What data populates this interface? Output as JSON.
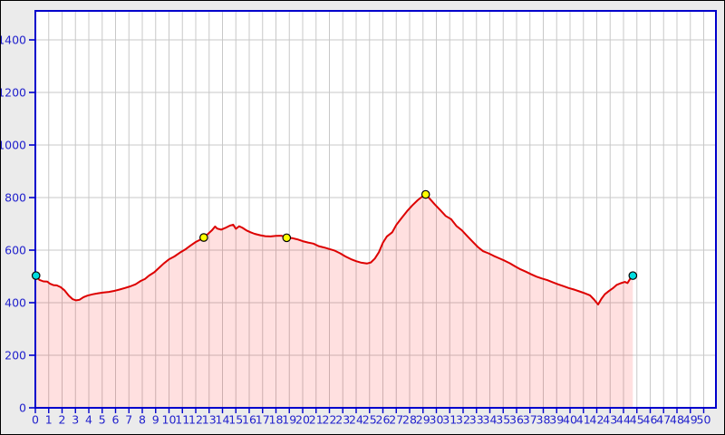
{
  "window": {
    "background": "#ebebeb",
    "border_color": "#000000"
  },
  "chart_data": {
    "type": "area",
    "title": "",
    "xlabel": "",
    "ylabel": "",
    "grid": true,
    "xlim": [
      0,
      51
    ],
    "ylim": [
      0,
      1510
    ],
    "x_ticks": [
      0,
      1,
      2,
      3,
      4,
      5,
      6,
      7,
      8,
      9,
      10,
      11,
      12,
      13,
      14,
      15,
      16,
      17,
      18,
      19,
      20,
      21,
      22,
      23,
      24,
      25,
      26,
      27,
      28,
      29,
      30,
      31,
      32,
      33,
      34,
      35,
      36,
      37,
      38,
      39,
      40,
      41,
      42,
      43,
      44,
      45,
      46,
      47,
      48,
      49,
      50
    ],
    "y_ticks": [
      0,
      200,
      400,
      600,
      800,
      1000,
      1200,
      1400
    ],
    "series": [
      {
        "name": "elevation-profile",
        "points": [
          [
            0.05,
            503
          ],
          [
            0.3,
            487
          ],
          [
            0.6,
            481
          ],
          [
            0.9,
            480
          ],
          [
            1.1,
            472
          ],
          [
            1.35,
            467
          ],
          [
            1.6,
            466
          ],
          [
            1.9,
            459
          ],
          [
            2.2,
            446
          ],
          [
            2.5,
            427
          ],
          [
            2.8,
            413
          ],
          [
            3.05,
            409
          ],
          [
            3.3,
            411
          ],
          [
            3.6,
            421
          ],
          [
            3.9,
            427
          ],
          [
            4.3,
            432
          ],
          [
            4.7,
            436
          ],
          [
            5.1,
            439
          ],
          [
            5.5,
            441
          ],
          [
            5.9,
            445
          ],
          [
            6.3,
            450
          ],
          [
            6.7,
            456
          ],
          [
            7.1,
            462
          ],
          [
            7.5,
            470
          ],
          [
            7.9,
            483
          ],
          [
            8.2,
            490
          ],
          [
            8.5,
            503
          ],
          [
            8.9,
            516
          ],
          [
            9.3,
            535
          ],
          [
            9.6,
            549
          ],
          [
            10,
            565
          ],
          [
            10.4,
            576
          ],
          [
            10.8,
            590
          ],
          [
            11.2,
            602
          ],
          [
            11.6,
            617
          ],
          [
            12,
            631
          ],
          [
            12.3,
            639
          ],
          [
            12.6,
            648
          ],
          [
            12.9,
            661
          ],
          [
            13.2,
            675
          ],
          [
            13.45,
            690
          ],
          [
            13.6,
            682
          ],
          [
            13.9,
            678
          ],
          [
            14.2,
            684
          ],
          [
            14.55,
            693
          ],
          [
            14.8,
            697
          ],
          [
            15,
            681
          ],
          [
            15.25,
            691
          ],
          [
            15.5,
            685
          ],
          [
            15.8,
            675
          ],
          [
            16.1,
            668
          ],
          [
            16.4,
            662
          ],
          [
            16.8,
            657
          ],
          [
            17.2,
            653
          ],
          [
            17.6,
            652
          ],
          [
            18,
            654
          ],
          [
            18.4,
            655
          ],
          [
            18.8,
            648
          ],
          [
            19.2,
            646
          ],
          [
            19.6,
            641
          ],
          [
            20,
            634
          ],
          [
            20.4,
            629
          ],
          [
            20.8,
            625
          ],
          [
            21.2,
            615
          ],
          [
            21.6,
            610
          ],
          [
            22,
            604
          ],
          [
            22.4,
            598
          ],
          [
            22.8,
            588
          ],
          [
            23.2,
            576
          ],
          [
            23.6,
            566
          ],
          [
            24,
            558
          ],
          [
            24.4,
            552
          ],
          [
            24.8,
            549
          ],
          [
            25.1,
            553
          ],
          [
            25.4,
            568
          ],
          [
            25.7,
            592
          ],
          [
            26,
            628
          ],
          [
            26.3,
            652
          ],
          [
            26.7,
            668
          ],
          [
            27,
            696
          ],
          [
            27.4,
            722
          ],
          [
            27.8,
            748
          ],
          [
            28.2,
            770
          ],
          [
            28.6,
            790
          ],
          [
            28.9,
            802
          ],
          [
            29.2,
            812
          ],
          [
            29.5,
            796
          ],
          [
            29.9,
            773
          ],
          [
            30.3,
            752
          ],
          [
            30.7,
            730
          ],
          [
            31.1,
            718
          ],
          [
            31.5,
            692
          ],
          [
            31.9,
            676
          ],
          [
            32.3,
            654
          ],
          [
            32.7,
            633
          ],
          [
            33.1,
            612
          ],
          [
            33.5,
            596
          ],
          [
            33.9,
            588
          ],
          [
            34.3,
            578
          ],
          [
            34.7,
            569
          ],
          [
            35.1,
            560
          ],
          [
            35.5,
            550
          ],
          [
            35.9,
            538
          ],
          [
            36.3,
            527
          ],
          [
            36.7,
            518
          ],
          [
            37.1,
            508
          ],
          [
            37.5,
            499
          ],
          [
            37.9,
            492
          ],
          [
            38.3,
            486
          ],
          [
            38.7,
            478
          ],
          [
            39.1,
            470
          ],
          [
            39.5,
            463
          ],
          [
            39.9,
            456
          ],
          [
            40.3,
            450
          ],
          [
            40.7,
            443
          ],
          [
            41.1,
            436
          ],
          [
            41.5,
            428
          ],
          [
            41.8,
            412
          ],
          [
            42.1,
            393
          ],
          [
            42.35,
            415
          ],
          [
            42.6,
            432
          ],
          [
            42.9,
            444
          ],
          [
            43.2,
            455
          ],
          [
            43.5,
            468
          ],
          [
            43.8,
            474
          ],
          [
            44.1,
            479
          ],
          [
            44.3,
            475
          ],
          [
            44.5,
            491
          ],
          [
            44.7,
            503
          ]
        ]
      }
    ],
    "markers": [
      {
        "name": "start",
        "x": 0.05,
        "y": 503,
        "color": "#00dde0"
      },
      {
        "name": "waypoint-1",
        "x": 12.6,
        "y": 648,
        "color": "#ffff00"
      },
      {
        "name": "waypoint-2",
        "x": 18.8,
        "y": 647,
        "color": "#ffff00"
      },
      {
        "name": "peak",
        "x": 29.2,
        "y": 812,
        "color": "#ffff00"
      },
      {
        "name": "end",
        "x": 44.7,
        "y": 503,
        "color": "#00dde0"
      }
    ],
    "legend": null
  },
  "style": {
    "line_color": "#dd0000",
    "fill_color": "rgba(255,0,0,0.12)",
    "axis_color": "#0000cc",
    "tick_label_color": "#2222cc",
    "grid_color": "#c8c8c8",
    "plot_background": "#ffffff",
    "marker_outline": "#000000"
  }
}
